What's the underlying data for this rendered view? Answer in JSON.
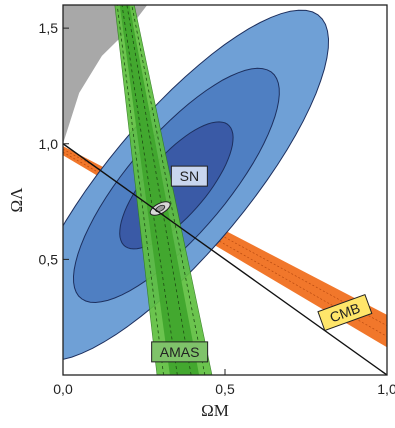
{
  "chart_data": {
    "type": "scatter",
    "xlabel": "ΩM",
    "ylabel": "ΩΛ",
    "xlim": [
      0.0,
      1.0
    ],
    "ylim": [
      0.0,
      1.6
    ],
    "x_ticks": [
      "0,0",
      "0,5",
      "1,0"
    ],
    "x_tick_values": [
      0.0,
      0.5,
      1.0
    ],
    "y_ticks": [
      "0,5",
      "1,0",
      "1,5"
    ],
    "y_tick_values": [
      0.5,
      1.0,
      1.5
    ],
    "grid": false,
    "colors": {
      "sn_outer": "#6fa0d6",
      "sn_mid": "#4f7fc2",
      "sn_inner": "#3a5aa6",
      "amas": "#5fc040",
      "amas_inner": "#3fa52c",
      "cmb": "#f07020",
      "excluded_region": "#a8a8a8",
      "combined": "#9a9a9a",
      "label_box_sn": "#c9d6ee",
      "label_box_amas": "#7fc36a",
      "label_box_cmb": "#ffe66a"
    },
    "regions": [
      {
        "name": "SN",
        "kind": "ellipse",
        "center": [
          0.35,
          0.82
        ],
        "levels": [
          {
            "semi_major": [
              0.42,
              0.75
            ],
            "semi_minor": [
              -0.21,
              0.11
            ]
          },
          {
            "semi_major": [
              0.28,
              0.5
            ],
            "semi_minor": [
              -0.15,
              0.08
            ]
          },
          {
            "semi_major": [
              0.15,
              0.27
            ],
            "semi_minor": [
              -0.09,
              0.05
            ]
          }
        ]
      },
      {
        "name": "AMAS",
        "kind": "band",
        "y_bottom": 0.0,
        "y_top": 1.6,
        "x_bottom": [
          0.29,
          0.46
        ],
        "x_top": [
          0.16,
          0.22
        ],
        "inner_x_bottom": [
          0.33,
          0.42
        ],
        "inner_x_top": [
          0.175,
          0.205
        ]
      },
      {
        "name": "CMB",
        "kind": "band",
        "x_left": 0.0,
        "x_right": 1.0,
        "y_left": [
          0.95,
          0.99
        ],
        "y_right": [
          0.12,
          0.26
        ]
      },
      {
        "name": "excluded",
        "kind": "boundary",
        "points": [
          [
            0.0,
            1.0
          ],
          [
            0.05,
            1.22
          ],
          [
            0.12,
            1.38
          ],
          [
            0.2,
            1.49
          ],
          [
            0.26,
            1.6
          ]
        ]
      }
    ],
    "flat_universe_line": {
      "x": [
        0.0,
        1.0
      ],
      "y": [
        1.0,
        0.0
      ]
    },
    "combined_constraint": {
      "center": [
        0.3,
        0.72
      ]
    },
    "annotations": [
      "SN",
      "AMAS",
      "CMB"
    ]
  }
}
